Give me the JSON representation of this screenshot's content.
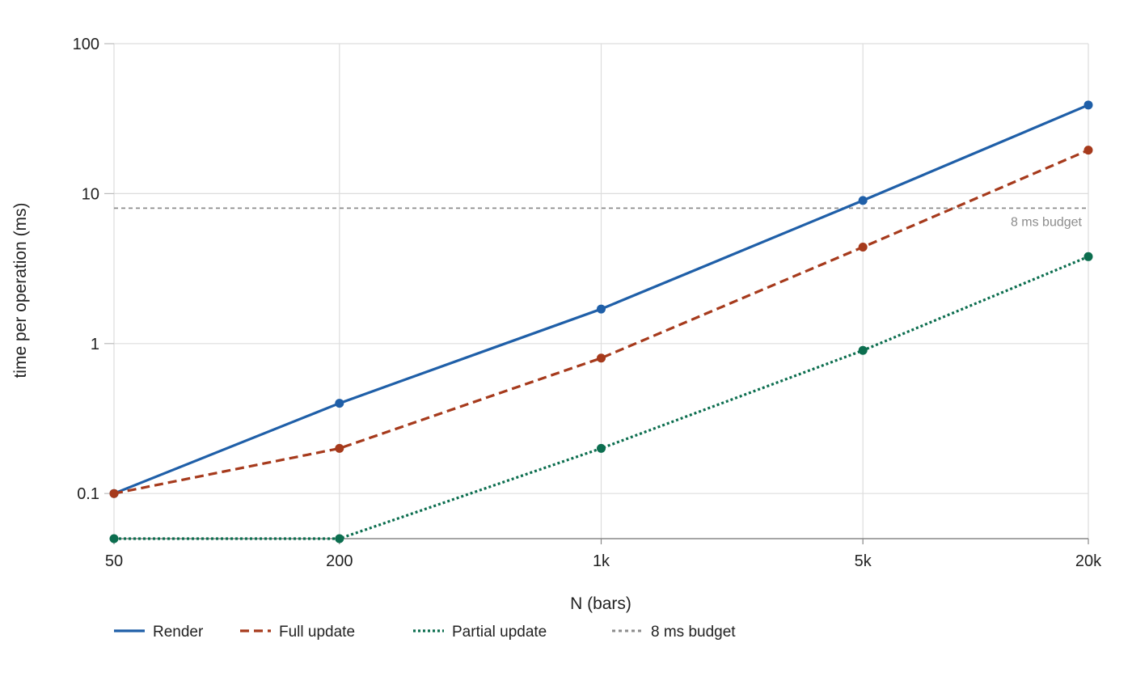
{
  "chart_data": {
    "type": "line",
    "title": "",
    "xlabel": "N (bars)",
    "ylabel": "time per operation (ms)",
    "x_scale": "log",
    "y_scale": "log",
    "x": [
      50,
      200,
      1000,
      5000,
      20000
    ],
    "x_tick_labels": [
      "50",
      "200",
      "1k",
      "5k",
      "20k"
    ],
    "y_ticks": [
      0.1,
      1,
      10,
      100
    ],
    "y_tick_labels": [
      "0.1",
      "1",
      "10",
      "100"
    ],
    "ylim": [
      0.05,
      100
    ],
    "grid": true,
    "legend_position": "bottom-left",
    "series": [
      {
        "name": "Render",
        "values": [
          0.1,
          0.4,
          1.7,
          9,
          39
        ],
        "color": "#1f5fa8",
        "style": "solid"
      },
      {
        "name": "Full update",
        "values": [
          0.1,
          0.2,
          0.8,
          4.4,
          19.5
        ],
        "color": "#a63a1c",
        "style": "dashed"
      },
      {
        "name": "Partial update",
        "values": [
          0.05,
          0.05,
          0.2,
          0.9,
          3.8
        ],
        "color": "#0c6e4f",
        "style": "dotted"
      }
    ],
    "reference_lines": [
      {
        "name": "8 ms budget",
        "value": 8,
        "color": "#8c8c8c",
        "style": "dashed",
        "label": "8 ms budget"
      }
    ]
  }
}
